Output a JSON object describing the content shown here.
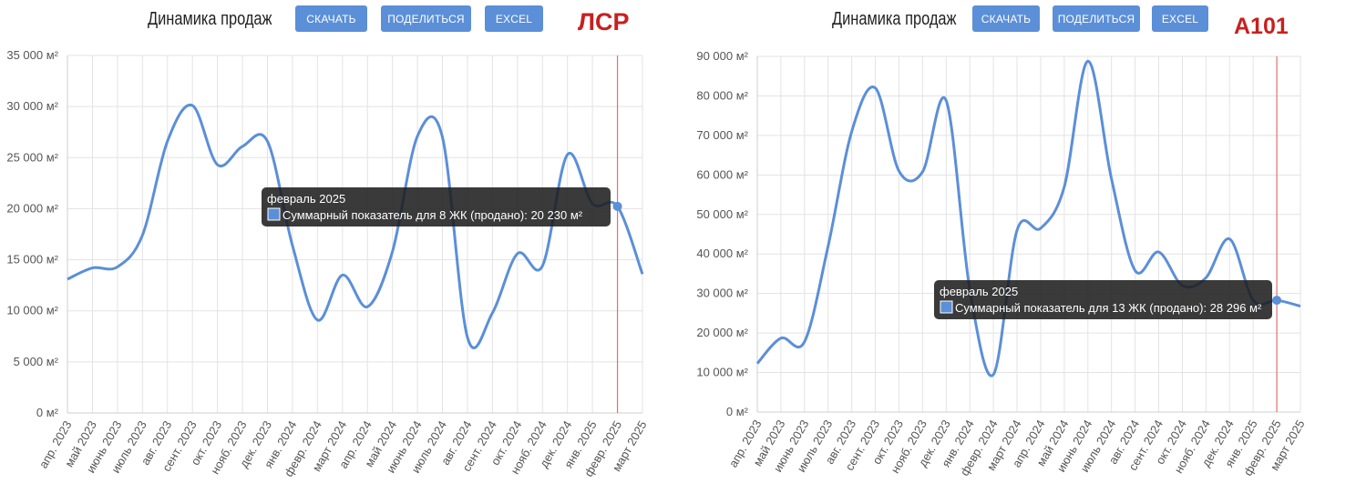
{
  "panels": [
    {
      "title": "Динамика продаж",
      "buttons": [
        "СКАЧАТЬ",
        "ПОДЕЛИТЬСЯ",
        "EXCEL"
      ],
      "brand": "ЛСР",
      "tooltip": {
        "title": "февраль 2025",
        "text": "Суммарный показатель для 8 ЖК (продано): 20 230 м²",
        "color": "#5b8fd8"
      }
    },
    {
      "title": "Динамика продаж",
      "buttons": [
        "СКАЧАТЬ",
        "ПОДЕЛИТЬСЯ",
        "EXCEL"
      ],
      "brand": "А101",
      "tooltip": {
        "title": "февраль 2025",
        "text": "Суммарный показатель для 13 ЖК (продано): 28 296 м²",
        "color": "#5b8fd8"
      }
    }
  ],
  "chart_data": [
    {
      "type": "line",
      "categories": [
        "апр. 2023",
        "май 2023",
        "июнь 2023",
        "июль 2023",
        "авг. 2023",
        "сент. 2023",
        "окт. 2023",
        "нояб. 2023",
        "дек. 2023",
        "янв. 2024",
        "февр. 2024",
        "март 2024",
        "апр. 2024",
        "май 2024",
        "июнь 2024",
        "июль 2024",
        "авг. 2024",
        "сент. 2024",
        "окт. 2024",
        "нояб. 2024",
        "дек. 2024",
        "янв. 2025",
        "февр. 2025",
        "март 2025"
      ],
      "series": [
        {
          "values": [
            13100,
            14200,
            14300,
            17400,
            26600,
            30100,
            24300,
            26100,
            26600,
            16400,
            9100,
            13500,
            10400,
            15800,
            27100,
            27000,
            7400,
            9800,
            15600,
            14400,
            25300,
            20500,
            20230,
            13600
          ]
        }
      ],
      "ylim": [
        0,
        35000
      ],
      "yticks": [
        0,
        5000,
        10000,
        15000,
        20000,
        25000,
        30000,
        35000
      ],
      "ytick_labels": [
        "0 м²",
        "5 000 м²",
        "10 000 м²",
        "15 000 м²",
        "20 000 м²",
        "25 000 м²",
        "30 000 м²",
        "35 000 м²"
      ],
      "highlight_index": 22,
      "grid": true,
      "line_color": "#5b8fd8",
      "marker_color": "#e07070"
    },
    {
      "type": "line",
      "categories": [
        "апр. 2023",
        "май 2023",
        "июнь 2023",
        "июль 2023",
        "авг. 2023",
        "сент. 2023",
        "окт. 2023",
        "нояб. 2023",
        "дек. 2023",
        "янв. 2024",
        "февр. 2024",
        "март 2024",
        "апр. 2024",
        "май 2024",
        "июнь 2024",
        "июль 2024",
        "авг. 2024",
        "сент. 2024",
        "окт. 2024",
        "нояб. 2024",
        "дек. 2024",
        "янв. 2025",
        "февр. 2025",
        "март 2025"
      ],
      "series": [
        {
          "values": [
            12300,
            18700,
            17800,
            42000,
            71000,
            82000,
            61000,
            60800,
            78800,
            31000,
            9500,
            46000,
            46500,
            57000,
            88800,
            59000,
            35800,
            40500,
            32000,
            34000,
            43800,
            28300,
            28296,
            26800
          ]
        }
      ],
      "ylim": [
        0,
        90000
      ],
      "yticks": [
        0,
        10000,
        20000,
        30000,
        40000,
        50000,
        60000,
        70000,
        80000,
        90000
      ],
      "ytick_labels": [
        "0 м²",
        "10 000 м²",
        "20 000 м²",
        "30 000 м²",
        "40 000 м²",
        "50 000 м²",
        "60 000 м²",
        "70 000 м²",
        "80 000 м²",
        "90 000 м²"
      ],
      "highlight_index": 22,
      "grid": true,
      "line_color": "#5b8fd8",
      "marker_color": "#e07070"
    }
  ]
}
